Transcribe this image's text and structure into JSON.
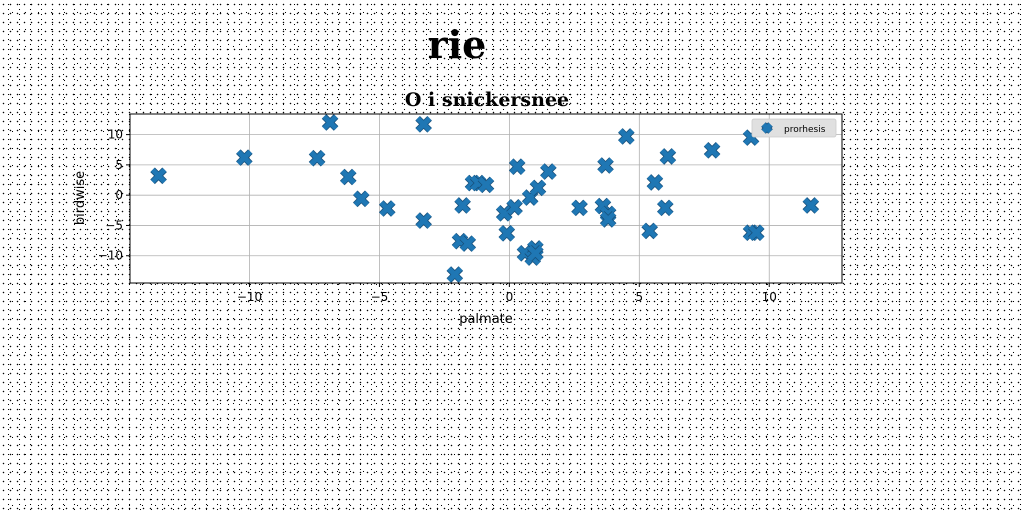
{
  "figure": {
    "suptitle": "rie"
  },
  "chart_data": {
    "type": "scatter",
    "title": "O i snickersnee",
    "xlabel": "palmate",
    "ylabel": "birdwise",
    "xlim": [
      -14.6,
      12.8
    ],
    "ylim": [
      -14.5,
      13.4
    ],
    "xticks": [
      -10,
      -5,
      0,
      5,
      10
    ],
    "yticks": [
      -10,
      -5,
      0,
      5,
      10
    ],
    "xtick_labels": [
      "−10",
      "−5",
      "0",
      "5",
      "10"
    ],
    "ytick_labels": [
      "−10",
      "−5",
      "0",
      "5",
      "10"
    ],
    "grid": true,
    "legend": {
      "position": "top-right"
    },
    "marker": "X",
    "color": "#1f77b4",
    "series": [
      {
        "name": "prorhesis",
        "x": [
          -13.5,
          -10.2,
          -7.4,
          -6.9,
          -6.2,
          -5.7,
          -4.7,
          -3.3,
          -3.3,
          -2.1,
          -1.8,
          -1.9,
          -1.6,
          -1.4,
          -1.2,
          -0.9,
          -0.2,
          -0.1,
          0.2,
          0.3,
          0.6,
          0.8,
          0.9,
          1.0,
          1.0,
          1.1,
          1.5,
          2.7,
          3.6,
          3.7,
          3.8,
          3.8,
          4.5,
          5.4,
          5.6,
          6.0,
          6.1,
          7.8,
          9.3,
          9.3,
          9.5,
          11.6
        ],
        "y": [
          3.2,
          6.2,
          6.1,
          12.0,
          3.0,
          -0.6,
          -2.2,
          11.7,
          -4.2,
          -13.1,
          -1.7,
          -7.6,
          -8.0,
          2.0,
          2.0,
          1.7,
          -3.0,
          -6.3,
          -2.0,
          4.7,
          -9.6,
          -0.4,
          -10.3,
          -8.8,
          -9.6,
          1.2,
          3.9,
          -2.1,
          -1.8,
          4.9,
          -3.1,
          -4.0,
          9.7,
          -5.9,
          2.1,
          -2.1,
          6.4,
          7.4,
          9.5,
          -6.2,
          -6.2,
          -1.7
        ]
      }
    ]
  }
}
